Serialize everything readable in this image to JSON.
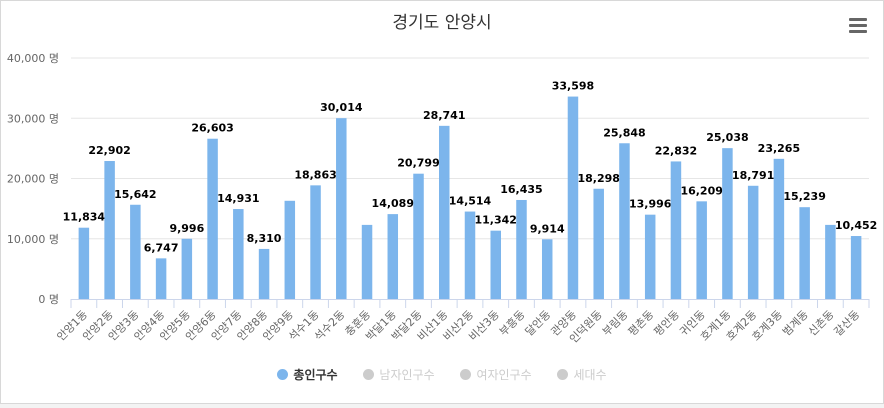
{
  "chart_data": {
    "type": "bar",
    "title": "경기도 안양시",
    "unit": "명",
    "ylim": [
      0,
      40000
    ],
    "yticks": [
      0,
      10000,
      20000,
      30000,
      40000
    ],
    "ytick_labels": [
      "0 명",
      "10,000 명",
      "20,000 명",
      "30,000 명",
      "40,000 명"
    ],
    "categories": [
      "안양1동",
      "안양2동",
      "안양3동",
      "안양4동",
      "안양5동",
      "안양6동",
      "안양7동",
      "안양8동",
      "안양9동",
      "석수1동",
      "석수2동",
      "충훈동",
      "박달1동",
      "박달2동",
      "비산1동",
      "비산2동",
      "비산3동",
      "부흥동",
      "달안동",
      "관양동",
      "인덕원동",
      "부림동",
      "평촌동",
      "평안동",
      "귀인동",
      "호계1동",
      "호계2동",
      "호계3동",
      "범계동",
      "신촌동",
      "갈산동"
    ],
    "series": [
      {
        "name": "총인구수",
        "color": "#7cb5ec",
        "values": [
          11834,
          22902,
          15642,
          6747,
          9996,
          26603,
          14931,
          8310,
          16300,
          18863,
          30014,
          12300,
          14089,
          20799,
          28741,
          14514,
          11342,
          16435,
          9914,
          33598,
          18298,
          25848,
          13996,
          22832,
          16209,
          25038,
          18791,
          23265,
          15239,
          12300,
          10452
        ],
        "labels": [
          "11,834",
          "22,902",
          "15,642",
          "6,747",
          "9,996",
          "26,603",
          "14,931",
          "8,310",
          "",
          "18,863",
          "30,014",
          "",
          "14,089",
          "20,799",
          "28,741",
          "14,514",
          "11,342",
          "16,435",
          "9,914",
          "33,598",
          "18,298",
          "25,848",
          "13,996",
          "22,832",
          "16,209",
          "25,038",
          "18,791",
          "23,265",
          "15,239",
          "",
          "10,452"
        ]
      }
    ],
    "legend": [
      {
        "name": "총인구수",
        "active": true
      },
      {
        "name": "남자인구수",
        "active": false
      },
      {
        "name": "여자인구수",
        "active": false
      },
      {
        "name": "세대수",
        "active": false
      }
    ]
  },
  "colors": {
    "bar": "#7cb5ec",
    "grid": "#e6e6e6",
    "axis": "#ccd6eb",
    "inactive": "#cccccc"
  },
  "menu": {
    "icon": "hamburger-menu-icon"
  }
}
